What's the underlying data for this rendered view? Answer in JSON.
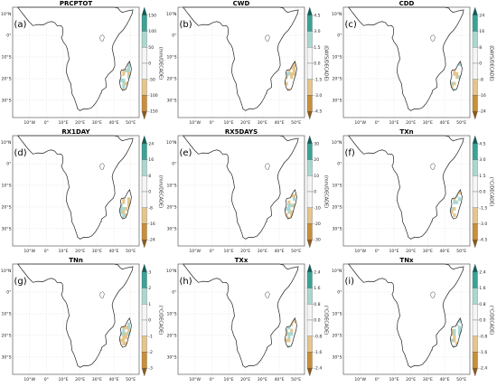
{
  "colors": {
    "positive_dark": "#0b5e58",
    "positive_mid": "#3aa395",
    "positive_light": "#a8d8cf",
    "neutral": "#f5f5f5",
    "negative_light": "#e6c58d",
    "negative_mid": "#c98f3a",
    "negative_dark": "#8a5a1c"
  },
  "lon_ticks": [
    "10°W",
    "0°",
    "10°E",
    "20°E",
    "30°E",
    "40°E",
    "50°E"
  ],
  "lat_ticks": [
    "10°N",
    "0°",
    "10°S",
    "20°S",
    "30°S"
  ],
  "panels": [
    {
      "title": "PRCPTOT",
      "letter": "(a)",
      "unit": "(mm/DECADE)",
      "ticks": [
        "150",
        "100",
        "50",
        "0",
        "-50",
        "-100",
        "-150"
      ],
      "pattern": "dry_center"
    },
    {
      "title": "CWD",
      "letter": "(b)",
      "unit": "(DAYS/DECADE)",
      "ticks": [
        "4.5",
        "3.0",
        "1.5",
        "0.0",
        "-1.5",
        "-3.0",
        "-4.5"
      ],
      "pattern": "mixed_light"
    },
    {
      "title": "CDD",
      "letter": "(c)",
      "unit": "(DAYS/DECADE)",
      "ticks": [
        "24",
        "16",
        "8",
        "0",
        "-8",
        "-16",
        "-24"
      ],
      "pattern": "very_light"
    },
    {
      "title": "RX1DAY",
      "letter": "(d)",
      "unit": "(mm/DECADE)",
      "ticks": [
        "24",
        "16",
        "8",
        "0",
        "-8",
        "-16",
        "-24"
      ],
      "pattern": "dry_center"
    },
    {
      "title": "RX5DAYS",
      "letter": "(e)",
      "unit": "(mm/DECADE)",
      "ticks": [
        "30",
        "20",
        "10",
        "0",
        "-10",
        "-20",
        "-30"
      ],
      "pattern": "dry_center"
    },
    {
      "title": "TXn",
      "letter": "(f)",
      "unit": "(°C/DECADE)",
      "ticks": [
        "4.5",
        "3.0",
        "1.5",
        "0.0",
        "-1.5",
        "-3.0",
        "-4.5"
      ],
      "pattern": "txn"
    },
    {
      "title": "TNn",
      "letter": "(g)",
      "unit": "(°C/DECADE)",
      "ticks": [
        "3",
        "2",
        "1",
        "0",
        "-1",
        "-2",
        "-3"
      ],
      "pattern": "tnn"
    },
    {
      "title": "TXx",
      "letter": "(h)",
      "unit": "(°C/DECADE)",
      "ticks": [
        "2.4",
        "1.6",
        "0.8",
        "0.0",
        "-0.8",
        "-1.6",
        "-2.4"
      ],
      "pattern": "txx"
    },
    {
      "title": "TNx",
      "letter": "(i)",
      "unit": "(°C/DECADE)",
      "ticks": [
        "2.4",
        "1.6",
        "0.8",
        "0.0",
        "-0.8",
        "-1.6",
        "-2.4"
      ],
      "pattern": "tnx"
    }
  ]
}
